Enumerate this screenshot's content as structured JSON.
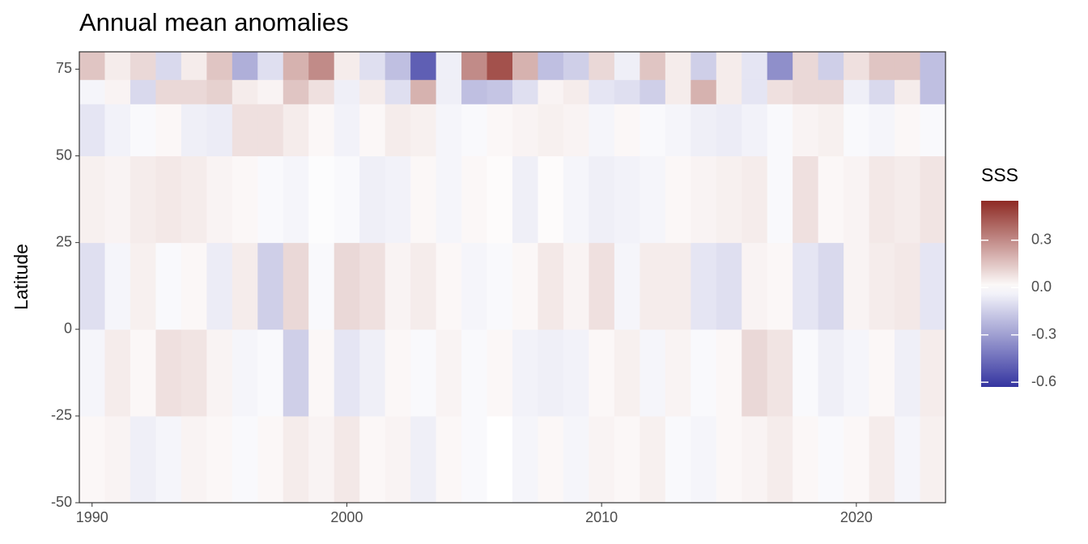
{
  "chart_data": {
    "type": "heatmap",
    "title": "Annual mean anomalies",
    "ylabel": "Latitude",
    "x": [
      1990,
      1991,
      1992,
      1993,
      1994,
      1995,
      1996,
      1997,
      1998,
      1999,
      2000,
      2001,
      2002,
      2003,
      2004,
      2005,
      2006,
      2007,
      2008,
      2009,
      2010,
      2011,
      2012,
      2013,
      2014,
      2015,
      2016,
      2017,
      2018,
      2019,
      2020,
      2021,
      2022,
      2023
    ],
    "y_bins": [
      -50,
      -25,
      0,
      25,
      50,
      65,
      72,
      80
    ],
    "z": [
      [
        0.02,
        0.03,
        -0.05,
        -0.03,
        0.03,
        0.02,
        -0.02,
        0.02,
        0.05,
        0.03,
        0.06,
        0.02,
        0.03,
        -0.05,
        0.02,
        -0.02,
        0,
        -0.03,
        0.02,
        -0.03,
        0.03,
        0.02,
        0.04,
        -0.02,
        -0.03,
        0.02,
        0.03,
        0.05,
        0.02,
        -0.02,
        0.02,
        0.05,
        -0.03,
        0.04
      ],
      [
        -0.03,
        0.05,
        0.02,
        0.08,
        0.07,
        0.03,
        -0.03,
        -0.02,
        -0.15,
        0.02,
        -0.08,
        -0.05,
        0.02,
        -0.02,
        0.03,
        -0.02,
        0.02,
        -0.04,
        -0.05,
        -0.04,
        0.02,
        0.04,
        -0.03,
        0.03,
        -0.02,
        0.02,
        0.1,
        0.07,
        -0.02,
        -0.05,
        -0.03,
        0.02,
        -0.05,
        0.05
      ],
      [
        -0.1,
        -0.03,
        0.04,
        -0.02,
        0.02,
        -0.06,
        0.05,
        -0.15,
        0.1,
        -0.02,
        0.1,
        0.08,
        0.03,
        0.05,
        0.02,
        -0.03,
        -0.02,
        0.02,
        0.06,
        0.03,
        0.08,
        -0.03,
        0.05,
        0.05,
        -0.08,
        -0.1,
        0.03,
        0.02,
        -0.08,
        -0.12,
        0.03,
        0.05,
        0.06,
        -0.08
      ],
      [
        0.04,
        0.03,
        0.05,
        0.06,
        0.05,
        0.03,
        0.02,
        -0.02,
        -0.03,
        -0.01,
        -0.02,
        -0.05,
        -0.04,
        0.02,
        -0.03,
        0.02,
        0.01,
        -0.05,
        0.01,
        -0.03,
        -0.05,
        -0.04,
        -0.03,
        0.02,
        0.03,
        0.04,
        0.05,
        -0.02,
        0.08,
        0.02,
        0.03,
        0.06,
        0.05,
        0.07
      ],
      [
        -0.08,
        -0.04,
        -0.02,
        0.02,
        -0.05,
        -0.06,
        0.08,
        0.08,
        0.05,
        0.02,
        -0.04,
        0.02,
        0.05,
        0.04,
        -0.03,
        -0.02,
        0.02,
        0.03,
        0.04,
        0.03,
        -0.03,
        0.02,
        -0.02,
        -0.03,
        -0.05,
        -0.06,
        -0.04,
        -0.02,
        0.03,
        0.04,
        -0.02,
        -0.03,
        0.02,
        -0.02
      ],
      [
        -0.03,
        0.03,
        -0.12,
        0.1,
        0.1,
        0.12,
        0.05,
        0.03,
        0.15,
        0.08,
        -0.05,
        0.05,
        -0.1,
        0.2,
        -0.05,
        -0.2,
        -0.18,
        -0.1,
        0.03,
        0.05,
        -0.08,
        -0.1,
        -0.15,
        0.05,
        0.2,
        0.05,
        -0.08,
        0.08,
        0.1,
        0.1,
        -0.05,
        -0.12,
        0.05,
        -0.2
      ],
      [
        0.15,
        0.05,
        0.1,
        -0.12,
        0.05,
        0.15,
        -0.25,
        -0.1,
        0.2,
        0.3,
        0.05,
        -0.1,
        -0.2,
        -0.5,
        -0.05,
        0.3,
        0.45,
        0.2,
        -0.2,
        -0.15,
        0.1,
        -0.05,
        0.15,
        0.05,
        -0.15,
        0.05,
        -0.08,
        -0.35,
        0.1,
        -0.15,
        0.08,
        0.15,
        0.15,
        -0.2
      ]
    ],
    "xlim": [
      1989.5,
      2023.5
    ],
    "xticks": [
      1990,
      2000,
      2010,
      2020
    ],
    "ylim": [
      -50,
      80
    ],
    "yticks": [
      -50,
      -25,
      0,
      25,
      50,
      75
    ],
    "colorbar": {
      "title": "SSS",
      "lim": [
        -0.63,
        0.55
      ],
      "ticks": [
        0.3,
        {
          "value": 0,
          "label": "0.0"
        },
        -0.3,
        -0.6
      ],
      "colors": [
        "#3535a0",
        "#ffffff",
        "#8e2a24"
      ]
    }
  }
}
